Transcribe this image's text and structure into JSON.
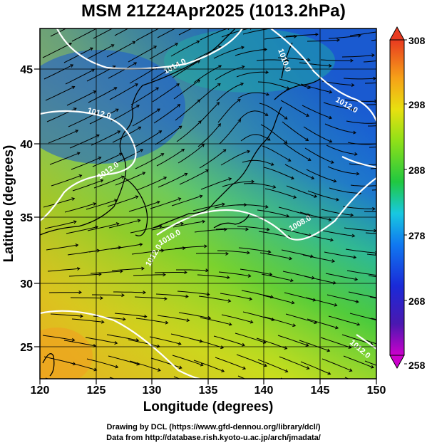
{
  "title": "MSM 21Z24Apr2025 (1013.2hPa)",
  "x_axis": {
    "label": "Longitude (degrees)",
    "ticks": [
      "120",
      "125",
      "130",
      "135",
      "140",
      "145",
      "150"
    ]
  },
  "y_axis": {
    "label": "Latitude  (degrees)",
    "ticks": [
      "25",
      "30",
      "35",
      "40",
      "45"
    ]
  },
  "colorbar": {
    "ticks": [
      "258",
      "268",
      "278",
      "288",
      "298",
      "308"
    ],
    "colors": [
      "#cc00cc",
      "#2a1fb8",
      "#1060ff",
      "#20c8e8",
      "#22c940",
      "#8ee01a",
      "#e8e80c",
      "#f7a21a",
      "#e84020"
    ]
  },
  "isobar_labels": [
    "1014.0",
    "1012.0",
    "1012.0",
    "1012.0",
    "1010.0",
    "1008.0",
    "1010.0",
    "1012.0",
    "1012.0"
  ],
  "credits": {
    "line1": "Drawing by DCL (https://www.gfd-dennou.org/library/dcl/)",
    "line2": "Data from http://database.rish.kyoto-u.ac.jp/arch/jmadata/"
  }
}
